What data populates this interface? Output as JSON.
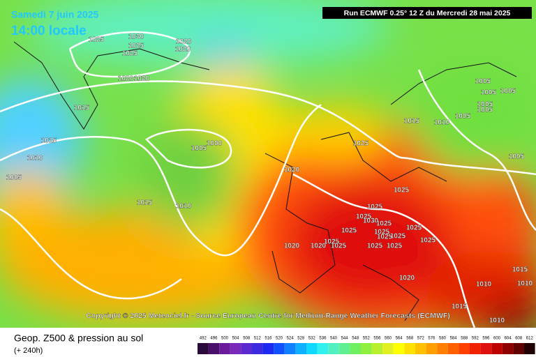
{
  "header": {
    "date": "Samedi 7 juin 2025",
    "time": "14:00 locale",
    "run": "Run ECMWF 0.25° 12 Z du Mercredi 28 mai 2025"
  },
  "copyright": "Copyright © 2025 Meteociel.fr - Source European Centre for Medium-Range Weather Forecasts (ECMWF)",
  "footer": {
    "title": "Geop. Z500 & pression au sol",
    "lead": "(+ 240h)"
  },
  "legend": {
    "values": [
      492,
      496,
      500,
      504,
      508,
      512,
      516,
      520,
      524,
      528,
      532,
      536,
      540,
      544,
      548,
      552,
      556,
      560,
      564,
      568,
      572,
      576,
      580,
      584,
      588,
      592,
      596,
      600,
      604,
      608,
      612
    ],
    "colors": [
      "#2a0a3a",
      "#4a0f6a",
      "#6a1a9a",
      "#7a2ab8",
      "#5a2ad0",
      "#3a2ae0",
      "#1a2af0",
      "#1050ff",
      "#1080ff",
      "#10b0ff",
      "#10d8ff",
      "#30f0f0",
      "#50f0c0",
      "#60f090",
      "#70f060",
      "#90f040",
      "#b8f030",
      "#e0f020",
      "#ffff00",
      "#ffe000",
      "#ffc000",
      "#ffa000",
      "#ff8000",
      "#ff6000",
      "#ff4000",
      "#f02000",
      "#e01010",
      "#c00000",
      "#900000",
      "#600000",
      "#200000"
    ]
  },
  "isobars": [
    "1030",
    "1025",
    "1025",
    "1025",
    "1020",
    "1020",
    "1020",
    "1020",
    "1015",
    "1015",
    "1010",
    "1005",
    "1005",
    "1000",
    "1015",
    "1010",
    "1020",
    "1025",
    "1015",
    "1010",
    "1005",
    "1005",
    "1005",
    "1005",
    "1005",
    "1005",
    "1005",
    "1025",
    "1025",
    "1025",
    "1030",
    "1025",
    "1025",
    "1025",
    "1025",
    "1025",
    "1025",
    "1025",
    "1025",
    "1025",
    "1025",
    "1020",
    "1020",
    "1025",
    "1020",
    "1015",
    "1010",
    "1010",
    "1015",
    "1010"
  ]
}
